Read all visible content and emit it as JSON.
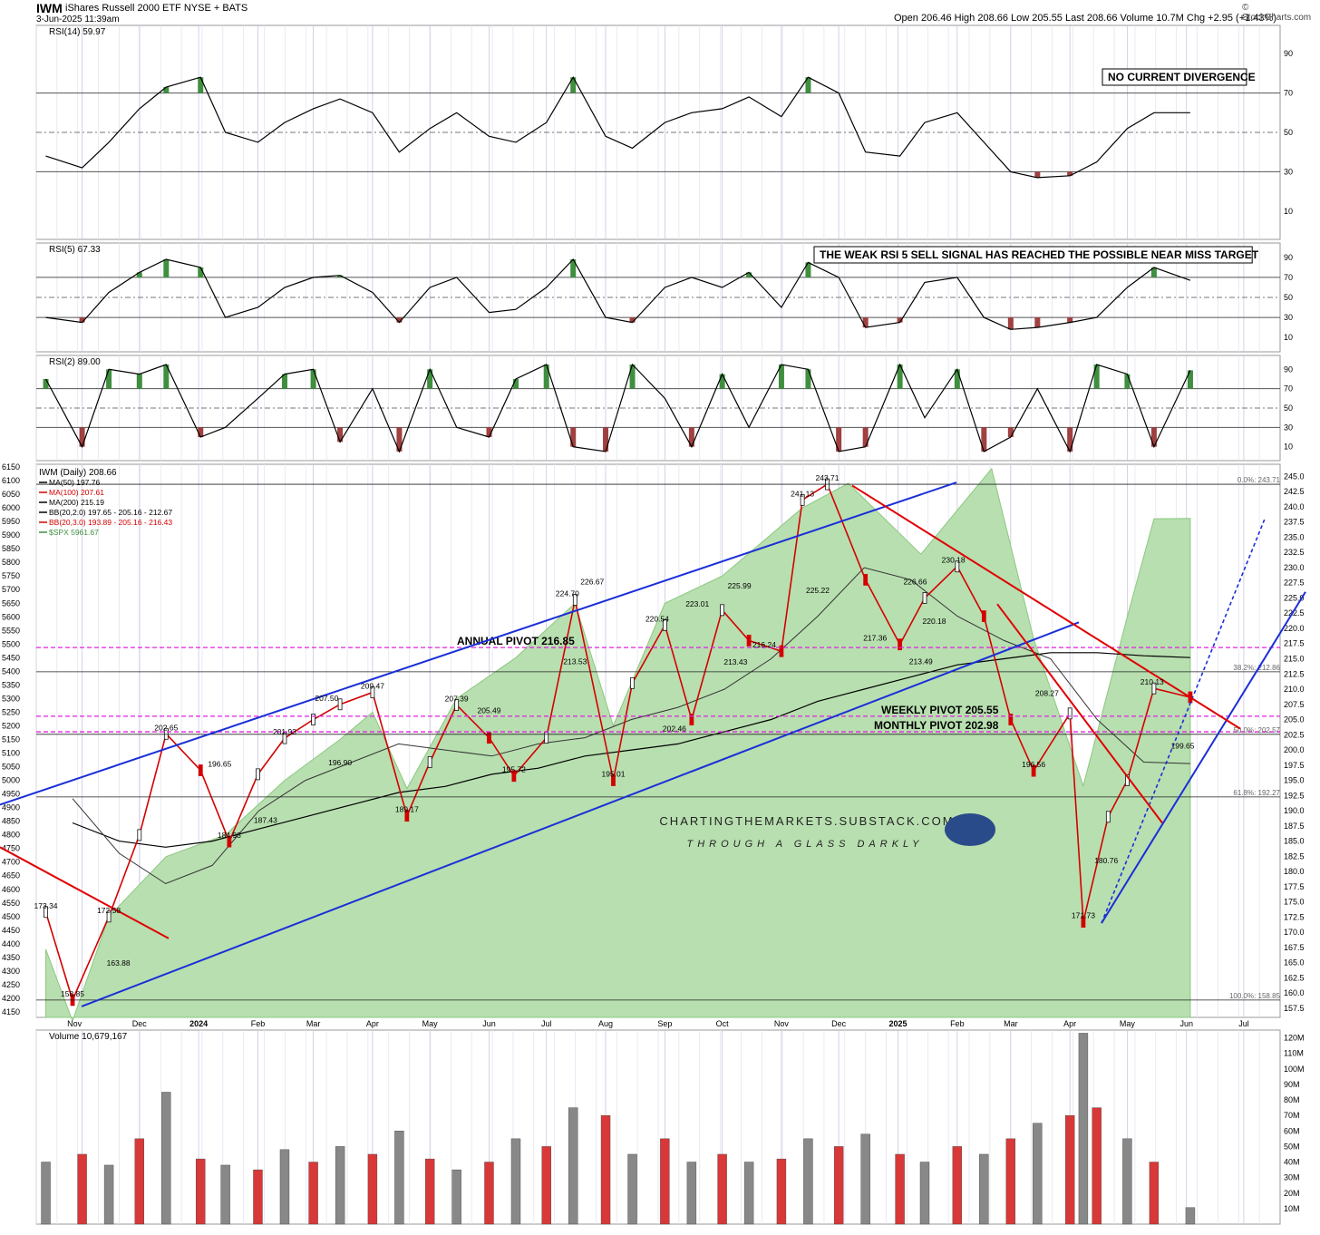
{
  "header": {
    "symbol": "IWM",
    "name": "iShares Russell 2000 ETF  NYSE + BATS",
    "datetime": "3-Jun-2025 11:39am",
    "ohlc": "Open 206.46   High 208.66   Low 205.55   Last 208.66   Volume 10.7M   Chg +2.95 (+1.43%)",
    "watermark": "© StockCharts.com"
  },
  "colors": {
    "up": "#111111",
    "down": "#d40000",
    "rsi_line": "#000000",
    "green_fill": "#3f8f3f",
    "red_fill": "#a04040",
    "spx_area": "#b8dfb0",
    "blue_line": "#1b2fd8",
    "pivot": "#e020e0",
    "red_trend": "#e00000"
  },
  "chart_data": [
    {
      "type": "line",
      "panel": "RSI(14)",
      "title": "RSI(14) 59.97",
      "yticks": [
        10,
        30,
        50,
        70,
        90
      ],
      "ylim": [
        0,
        100
      ],
      "levels": [
        30,
        50,
        70
      ],
      "annotation": "NO CURRENT DIVERGENCE",
      "x": [
        "2023-10-13",
        "2023-11-01",
        "2023-11-15",
        "2023-12-01",
        "2023-12-15",
        "2024-01-02",
        "2024-01-15",
        "2024-02-01",
        "2024-02-15",
        "2024-03-01",
        "2024-03-15",
        "2024-04-01",
        "2024-04-15",
        "2024-05-01",
        "2024-05-15",
        "2024-06-01",
        "2024-06-15",
        "2024-07-01",
        "2024-07-15",
        "2024-08-01",
        "2024-08-15",
        "2024-09-01",
        "2024-09-15",
        "2024-10-01",
        "2024-10-15",
        "2024-11-01",
        "2024-11-15",
        "2024-12-01",
        "2024-12-15",
        "2025-01-02",
        "2025-01-15",
        "2025-02-01",
        "2025-02-15",
        "2025-03-01",
        "2025-03-15",
        "2025-04-01",
        "2025-04-15",
        "2025-05-01",
        "2025-05-15",
        "2025-06-03"
      ],
      "values": [
        38,
        32,
        45,
        62,
        73,
        78,
        50,
        45,
        55,
        62,
        67,
        60,
        40,
        52,
        60,
        48,
        45,
        55,
        78,
        48,
        42,
        55,
        60,
        62,
        68,
        58,
        78,
        70,
        40,
        38,
        55,
        60,
        45,
        30,
        27,
        28,
        35,
        52,
        60,
        60
      ]
    },
    {
      "type": "line",
      "panel": "RSI(5)",
      "title": "RSI(5) 67.33",
      "yticks": [
        10,
        30,
        50,
        70,
        90
      ],
      "ylim": [
        0,
        100
      ],
      "levels": [
        30,
        50,
        70
      ],
      "annotation": "THE WEAK RSI 5 SELL SIGNAL HAS REACHED THE POSSIBLE NEAR MISS TARGET",
      "x": [
        "2023-10-13",
        "2023-11-01",
        "2023-11-15",
        "2023-12-01",
        "2023-12-15",
        "2024-01-02",
        "2024-01-15",
        "2024-02-01",
        "2024-02-15",
        "2024-03-01",
        "2024-03-15",
        "2024-04-01",
        "2024-04-15",
        "2024-05-01",
        "2024-05-15",
        "2024-06-01",
        "2024-06-15",
        "2024-07-01",
        "2024-07-15",
        "2024-08-01",
        "2024-08-15",
        "2024-09-01",
        "2024-09-15",
        "2024-10-01",
        "2024-10-15",
        "2024-11-01",
        "2024-11-15",
        "2024-12-01",
        "2024-12-15",
        "2025-01-02",
        "2025-01-15",
        "2025-02-01",
        "2025-02-15",
        "2025-03-01",
        "2025-03-15",
        "2025-04-01",
        "2025-04-15",
        "2025-05-01",
        "2025-05-15",
        "2025-06-03"
      ],
      "values": [
        30,
        25,
        55,
        75,
        88,
        80,
        30,
        40,
        60,
        70,
        72,
        55,
        25,
        60,
        70,
        35,
        38,
        60,
        88,
        30,
        25,
        60,
        70,
        60,
        75,
        40,
        85,
        70,
        20,
        25,
        65,
        70,
        30,
        18,
        20,
        25,
        30,
        60,
        80,
        67
      ]
    },
    {
      "type": "line",
      "panel": "RSI(2)",
      "title": "RSI(2) 89.00",
      "yticks": [
        10,
        30,
        50,
        70,
        90
      ],
      "ylim": [
        0,
        100
      ],
      "levels": [
        30,
        50,
        70
      ],
      "x": [
        "2023-10-13",
        "2023-11-01",
        "2023-11-15",
        "2023-12-01",
        "2023-12-15",
        "2024-01-02",
        "2024-01-15",
        "2024-02-01",
        "2024-02-15",
        "2024-03-01",
        "2024-03-15",
        "2024-04-01",
        "2024-04-15",
        "2024-05-01",
        "2024-05-15",
        "2024-06-01",
        "2024-06-15",
        "2024-07-01",
        "2024-07-15",
        "2024-08-01",
        "2024-08-15",
        "2024-09-01",
        "2024-09-15",
        "2024-10-01",
        "2024-10-15",
        "2024-11-01",
        "2024-11-15",
        "2024-12-01",
        "2024-12-15",
        "2025-01-02",
        "2025-01-15",
        "2025-02-01",
        "2025-02-15",
        "2025-03-01",
        "2025-03-15",
        "2025-04-01",
        "2025-04-15",
        "2025-05-01",
        "2025-05-15",
        "2025-06-03"
      ],
      "values": [
        80,
        10,
        90,
        85,
        95,
        20,
        30,
        60,
        85,
        90,
        15,
        70,
        5,
        90,
        30,
        20,
        80,
        95,
        10,
        5,
        95,
        60,
        10,
        85,
        30,
        95,
        90,
        5,
        10,
        95,
        40,
        90,
        5,
        20,
        70,
        5,
        95,
        85,
        10,
        89
      ]
    },
    {
      "type": "line",
      "panel": "price",
      "title": "IWM (Daily) 208.66",
      "legend": [
        "MA(50) 197.76",
        "MA(100) 207.61",
        "MA(200) 215.19",
        "BB(20,2.0) 197.65 - 205.16 - 212.67",
        "BB(20,3.0) 193.89 - 205.16 - 216.43",
        "$SPX 5961.67"
      ],
      "legend_colors": [
        "#000000",
        "#d40000",
        "#000000",
        "#000000",
        "#d40000",
        "#3f8f3f"
      ],
      "xticks": [
        "Nov",
        "Dec",
        "2024",
        "Feb",
        "Mar",
        "Apr",
        "May",
        "Jun",
        "Jul",
        "Aug",
        "Sep",
        "Oct",
        "Nov",
        "Dec",
        "2025",
        "Feb",
        "Mar",
        "Apr",
        "May",
        "Jun",
        "Jul"
      ],
      "yticks_right": [
        157.5,
        160,
        162.5,
        165,
        167.5,
        170,
        172.5,
        175,
        177.5,
        180,
        182.5,
        185,
        187.5,
        190,
        192.5,
        195,
        197.5,
        200,
        202.5,
        205,
        207.5,
        210,
        212.5,
        215,
        217.5,
        220,
        222.5,
        225,
        227.5,
        230,
        232.5,
        235,
        237.5,
        240,
        242.5,
        245
      ],
      "yticks_left": [
        4150,
        4200,
        4250,
        4300,
        4350,
        4400,
        4450,
        4500,
        4550,
        4600,
        4650,
        4700,
        4750,
        4800,
        4850,
        4900,
        4950,
        5000,
        5050,
        5100,
        5150,
        5200,
        5250,
        5300,
        5350,
        5400,
        5450,
        5500,
        5550,
        5600,
        5650,
        5700,
        5750,
        5800,
        5850,
        5900,
        5950,
        6000,
        6050,
        6100,
        6150
      ],
      "ylim_right": [
        156,
        247
      ],
      "ylim_left": [
        4130,
        6160
      ],
      "x": [
        "2023-10-13",
        "2023-10-27",
        "2023-11-15",
        "2023-12-01",
        "2023-12-15",
        "2024-01-02",
        "2024-01-17",
        "2024-02-01",
        "2024-02-15",
        "2024-03-01",
        "2024-03-15",
        "2024-04-01",
        "2024-04-19",
        "2024-05-01",
        "2024-05-15",
        "2024-06-01",
        "2024-06-14",
        "2024-07-01",
        "2024-07-16",
        "2024-08-05",
        "2024-08-15",
        "2024-09-01",
        "2024-09-15",
        "2024-10-01",
        "2024-10-15",
        "2024-11-01",
        "2024-11-12",
        "2024-11-25",
        "2024-12-15",
        "2025-01-02",
        "2025-01-15",
        "2025-02-01",
        "2025-02-15",
        "2025-03-01",
        "2025-03-13",
        "2025-04-01",
        "2025-04-08",
        "2025-04-21",
        "2025-05-01",
        "2025-05-15",
        "2025-06-03"
      ],
      "values": [
        173.34,
        158.85,
        172.58,
        186.0,
        202.65,
        196.65,
        184.93,
        196.0,
        201.93,
        205.0,
        207.5,
        209.47,
        189.17,
        198.0,
        207.39,
        202.0,
        195.72,
        202.0,
        224.7,
        195.01,
        211.0,
        220.54,
        205.0,
        223.01,
        218.0,
        216.24,
        241.13,
        243.71,
        228.0,
        217.36,
        225.0,
        230.18,
        222.0,
        205.0,
        196.56,
        206.0,
        171.73,
        189.0,
        195.0,
        210.13,
        208.66
      ],
      "spx_x": [
        "2023-10-13",
        "2023-10-27",
        "2023-11-15",
        "2023-12-15",
        "2024-01-15",
        "2024-02-15",
        "2024-03-15",
        "2024-04-01",
        "2024-04-19",
        "2024-05-15",
        "2024-06-15",
        "2024-07-16",
        "2024-08-05",
        "2024-09-01",
        "2024-10-01",
        "2024-11-12",
        "2024-12-06",
        "2025-01-13",
        "2025-02-19",
        "2025-03-13",
        "2025-04-08",
        "2025-05-01",
        "2025-05-15",
        "2025-06-03"
      ],
      "spx_values": [
        4380,
        4117,
        4500,
        4720,
        4800,
        5000,
        5150,
        5250,
        4970,
        5300,
        5450,
        5650,
        5200,
        5650,
        5750,
        6000,
        6090,
        5830,
        6144,
        5520,
        4980,
        5600,
        5960,
        5961
      ],
      "ma50": [
        192,
        183,
        178,
        181,
        190,
        195,
        198,
        201,
        200,
        199,
        201,
        202,
        205,
        207,
        210,
        215,
        222,
        230,
        228,
        222,
        218,
        215,
        205,
        198,
        197.76
      ],
      "ma200": [
        188,
        185,
        184,
        185,
        187,
        189,
        191,
        193,
        194,
        196,
        197,
        199,
        200,
        201,
        203,
        205,
        208,
        210,
        212,
        214,
        215,
        216,
        216,
        215.5,
        215.19
      ],
      "labels": [
        "173.34",
        "158.85",
        "172.58",
        "163.88",
        "202.65",
        "196.65",
        "184.93",
        "187.43",
        "201.93",
        "207.50",
        "196.90",
        "209.47",
        "189.17",
        "207.39",
        "205.49",
        "195.72",
        "224.70",
        "226.67",
        "213.53",
        "195.01",
        "202.46",
        "220.54",
        "223.01",
        "225.99",
        "216.24",
        "213.43",
        "241.13",
        "243.71",
        "225.22",
        "226.66",
        "230.18",
        "217.36",
        "220.18",
        "213.49",
        "208.27",
        "196.56",
        "171.73",
        "180.76",
        "210.13",
        "199.65"
      ],
      "hlines": [
        {
          "label": "ANNUAL PIVOT 216.85",
          "value": 216.85
        },
        {
          "label": "WEEKLY PIVOT 205.55",
          "value": 205.55
        },
        {
          "label": "MONTHLY PIVOT 202.98",
          "value": 202.98
        }
      ],
      "fib": [
        {
          "label": "0.0%: 243.71",
          "value": 243.71
        },
        {
          "label": "38.2%: 212.86",
          "value": 212.86
        },
        {
          "label": "50.0%: 202.57",
          "value": 202.57
        },
        {
          "label": "61.8%: 192.27",
          "value": 192.27
        },
        {
          "label": "100.0%: 158.85",
          "value": 158.85
        }
      ],
      "branding": [
        "CHARTINGTHEMARKETS.SUBSTACK.COM",
        "THROUGH A GLASS DARKLY"
      ]
    },
    {
      "type": "bar",
      "panel": "volume",
      "title": "Volume 10,679,167",
      "yticks": [
        "10M",
        "20M",
        "30M",
        "40M",
        "50M",
        "60M",
        "70M",
        "80M",
        "90M",
        "100M",
        "110M",
        "120M"
      ],
      "ylim": [
        0,
        125
      ],
      "x": [
        "2023-10-13",
        "2023-11-01",
        "2023-11-15",
        "2023-12-01",
        "2023-12-15",
        "2024-01-02",
        "2024-01-15",
        "2024-02-01",
        "2024-02-15",
        "2024-03-01",
        "2024-03-15",
        "2024-04-01",
        "2024-04-15",
        "2024-05-01",
        "2024-05-15",
        "2024-06-01",
        "2024-06-15",
        "2024-07-01",
        "2024-07-15",
        "2024-08-01",
        "2024-08-15",
        "2024-09-01",
        "2024-09-15",
        "2024-10-01",
        "2024-10-15",
        "2024-11-01",
        "2024-11-15",
        "2024-12-01",
        "2024-12-15",
        "2025-01-02",
        "2025-01-15",
        "2025-02-01",
        "2025-02-15",
        "2025-03-01",
        "2025-03-15",
        "2025-04-01",
        "2025-04-08",
        "2025-04-15",
        "2025-05-01",
        "2025-05-15",
        "2025-06-03"
      ],
      "values": [
        40,
        45,
        38,
        55,
        85,
        42,
        38,
        35,
        48,
        40,
        50,
        45,
        60,
        42,
        35,
        40,
        55,
        50,
        75,
        70,
        45,
        55,
        40,
        45,
        40,
        42,
        55,
        50,
        58,
        45,
        40,
        50,
        45,
        55,
        65,
        70,
        123,
        75,
        55,
        40,
        10.68
      ]
    }
  ]
}
